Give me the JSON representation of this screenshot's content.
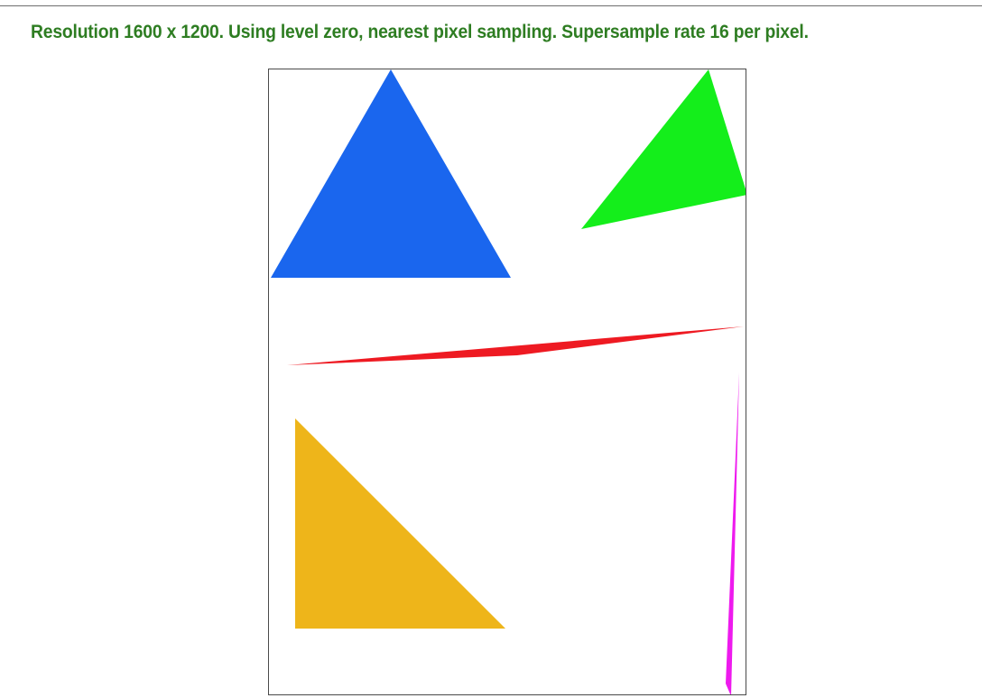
{
  "caption": {
    "text": "Resolution 1600 x 1200. Using level zero, nearest pixel sampling. Supersample rate 16 per pixel.",
    "color": "#2e7d22"
  },
  "render_view": {
    "shapes": [
      {
        "name": "blue-triangle",
        "color": "#1a66ee"
      },
      {
        "name": "green-triangle",
        "color": "#14ee1b"
      },
      {
        "name": "red-sliver-triangle",
        "color": "#ee1a22"
      },
      {
        "name": "yellow-triangle",
        "color": "#eeb51a"
      },
      {
        "name": "magenta-sliver-triangle",
        "color": "#ee1aee"
      }
    ]
  }
}
